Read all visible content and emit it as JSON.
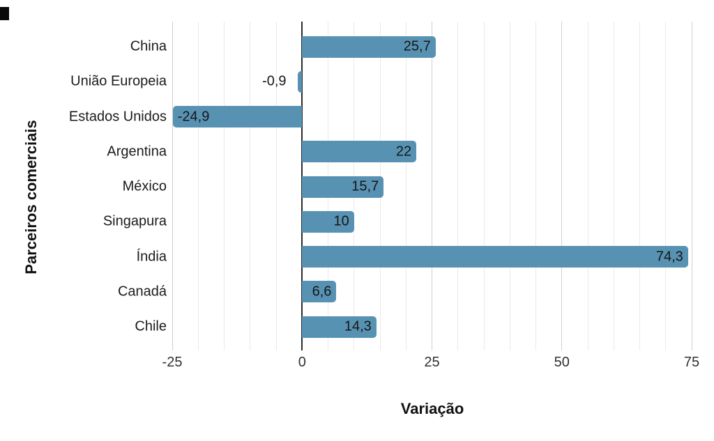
{
  "chart_data": {
    "type": "bar",
    "orientation": "horizontal",
    "title": "",
    "xlabel": "Variação",
    "ylabel": "Parceiros comerciais",
    "categories": [
      "China",
      "União Europeia",
      "Estados Unidos",
      "Argentina",
      "México",
      "Singapura",
      "Índia",
      "Canadá",
      "Chile"
    ],
    "values": [
      25.7,
      -0.9,
      -24.9,
      22,
      15.7,
      10,
      74.3,
      6.6,
      14.3
    ],
    "value_labels": [
      "25,7",
      "-0,9",
      "-24,9",
      "22",
      "15,7",
      "10",
      "74,3",
      "6,6",
      "14,3"
    ],
    "xlim": [
      -25,
      75
    ],
    "xticks": [
      -25,
      0,
      25,
      50,
      75
    ],
    "xtick_labels": [
      "-25",
      "0",
      "25",
      "50",
      "75"
    ],
    "minor_grid_step": 5,
    "grid": true,
    "legend": false,
    "colors": {
      "bar": "#5892b3",
      "minor_grid": "#e9e9e9",
      "major_grid": "#cfcfcf",
      "zero_axis": "#2b2b2b",
      "label_text": "#1b1b1b",
      "tick_text": "#303030"
    }
  },
  "misc": {
    "corner_mark": "black-rectangle-top-left"
  }
}
